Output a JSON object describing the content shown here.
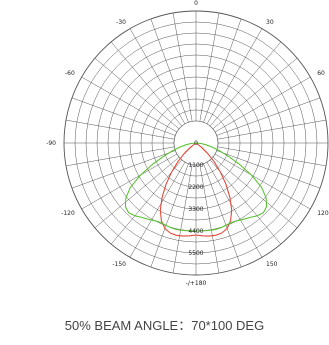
{
  "chart_data": {
    "type": "polar",
    "angle_labels": [
      {
        "deg": 180,
        "text": "-/+180"
      },
      {
        "deg": 150,
        "text": "150"
      },
      {
        "deg": 120,
        "text": "120"
      },
      {
        "deg": 90,
        "text": "90"
      },
      {
        "deg": 60,
        "text": "60"
      },
      {
        "deg": 30,
        "text": "30"
      },
      {
        "deg": 0,
        "text": "0"
      },
      {
        "deg": -30,
        "text": "-30"
      },
      {
        "deg": -60,
        "text": "-60"
      },
      {
        "deg": -90,
        "text": "-90"
      },
      {
        "deg": -120,
        "text": "-120"
      },
      {
        "deg": -150,
        "text": "-150"
      }
    ],
    "radial_ticks": [
      0,
      1100,
      2200,
      3300,
      4400,
      5500
    ],
    "r_max": 6600,
    "spoke_step_deg": 10,
    "ring_step": 550,
    "series": [
      {
        "color": "#e04a3a",
        "angles": [
          -56,
          -52,
          -48,
          -44,
          -40,
          -36,
          -32,
          -28,
          -24,
          -20,
          -16,
          -12,
          -8,
          -4,
          0,
          4,
          8,
          12,
          16,
          20,
          24,
          28,
          32,
          36,
          40,
          44,
          48,
          52,
          56
        ],
        "values": [
          0,
          350,
          800,
          1300,
          1900,
          2550,
          3200,
          3800,
          4250,
          4550,
          4680,
          4720,
          4700,
          4650,
          4600,
          4650,
          4700,
          4720,
          4680,
          4550,
          4250,
          3800,
          3200,
          2550,
          1900,
          1300,
          800,
          350,
          0
        ]
      },
      {
        "color": "#5cc233",
        "angles": [
          -90,
          -84,
          -80,
          -76,
          -72,
          -68,
          -64,
          -60,
          -56,
          -52,
          -48,
          -44,
          -40,
          -36,
          -32,
          -28,
          -24,
          -20,
          -16,
          -12,
          -8,
          -4,
          0,
          4,
          8,
          12,
          16,
          20,
          24,
          28,
          32,
          36,
          40,
          44,
          48,
          52,
          56,
          60,
          64,
          68,
          72,
          76,
          80,
          84,
          90
        ],
        "values": [
          0,
          250,
          500,
          800,
          1200,
          1700,
          2400,
          3200,
          3950,
          4450,
          4750,
          4850,
          4750,
          4600,
          4500,
          4400,
          4350,
          4380,
          4420,
          4430,
          4420,
          4400,
          4400,
          4400,
          4420,
          4430,
          4420,
          4380,
          4350,
          4400,
          4500,
          4600,
          4750,
          4850,
          4750,
          4450,
          3950,
          3200,
          2400,
          1700,
          1200,
          800,
          500,
          250,
          0
        ]
      }
    ],
    "caption": "50% BEAM ANGLE：70*100 DEG"
  }
}
